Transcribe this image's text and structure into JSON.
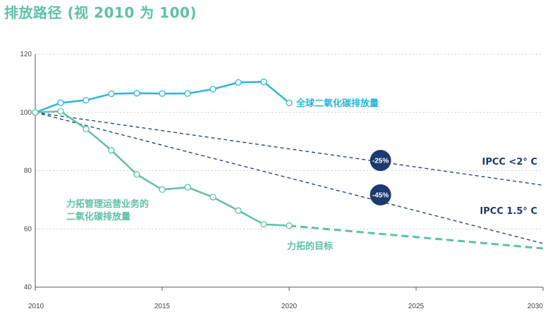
{
  "title": "排放路径 (视 2010 为 100)",
  "chart_data": {
    "type": "line",
    "xlim": [
      2010,
      2030
    ],
    "ylim": [
      40,
      120
    ],
    "x_ticks": [
      2010,
      2015,
      2020,
      2025,
      2030
    ],
    "y_ticks": [
      40,
      60,
      80,
      100,
      120
    ],
    "grid": true,
    "series": [
      {
        "name": "全球二氧化碳排放量",
        "color": "#2bb5d8",
        "style": "solid-markers",
        "x": [
          2010,
          2011,
          2012,
          2013,
          2014,
          2015,
          2016,
          2017,
          2018,
          2019,
          2020
        ],
        "y": [
          100,
          103.3,
          104.2,
          106.4,
          106.6,
          106.5,
          106.5,
          108.0,
          110.3,
          110.5,
          103.3
        ]
      },
      {
        "name": "力拓管理运营业务的二氧化碳排放量",
        "label_lines": [
          "力拓管理运营业务的",
          "二氧化碳排放量"
        ],
        "color": "#5dc0a6",
        "style": "solid-markers",
        "x": [
          2010,
          2011,
          2012,
          2013,
          2014,
          2015,
          2016,
          2017,
          2018,
          2019,
          2020
        ],
        "y": [
          100,
          100.4,
          94.3,
          87.0,
          78.7,
          73.5,
          74.3,
          70.9,
          66.3,
          61.6,
          61.1
        ]
      },
      {
        "name": "力拓的目标",
        "color": "#5dc0a6",
        "style": "dashed-thick",
        "x": [
          2020,
          2030
        ],
        "y": [
          61.1,
          53.3
        ]
      },
      {
        "name": "IPCC <2° C",
        "color": "#1c3a6e",
        "style": "dashed",
        "x": [
          2010,
          2030
        ],
        "y": [
          100,
          75
        ]
      },
      {
        "name": "IPCC 1.5° C",
        "color": "#1c3a6e",
        "style": "dashed",
        "x": [
          2010,
          2030
        ],
        "y": [
          100,
          55
        ]
      }
    ],
    "annotations": [
      {
        "text": "-25%",
        "x": 2023.6,
        "y": 83.5,
        "color": "#1c3a6e"
      },
      {
        "text": "-45%",
        "x": 2023.6,
        "y": 71.7,
        "color": "#1c3a6e"
      }
    ]
  }
}
